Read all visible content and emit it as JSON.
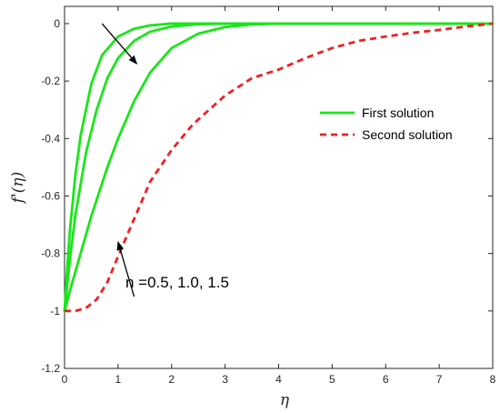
{
  "chart_data": {
    "type": "line",
    "title": "",
    "xlabel": "η",
    "ylabel": "f'(η)",
    "xlim": [
      0,
      8
    ],
    "ylim": [
      -1.2,
      0.05
    ],
    "xticks": [
      "0",
      "1",
      "2",
      "3",
      "4",
      "5",
      "6",
      "7",
      "8"
    ],
    "yticks": [
      "0",
      "-0.2",
      "-0.4",
      "-0.6",
      "-0.8",
      "-1",
      "-1.2"
    ],
    "grid": false,
    "legend_position": "right",
    "colors": {
      "first": "#19e619",
      "second": "#f02020",
      "axis": "#262626"
    },
    "series": [
      {
        "name": "First solution",
        "group": "first",
        "style": "solid",
        "points": [
          [
            0,
            -1
          ],
          [
            0.05,
            -0.85
          ],
          [
            0.1,
            -0.72
          ],
          [
            0.2,
            -0.53
          ],
          [
            0.3,
            -0.39
          ],
          [
            0.5,
            -0.21
          ],
          [
            0.7,
            -0.11
          ],
          [
            1.0,
            -0.045
          ],
          [
            1.3,
            -0.018
          ],
          [
            1.6,
            -0.006
          ],
          [
            2.0,
            0
          ],
          [
            8,
            0
          ]
        ]
      },
      {
        "name": "",
        "group": "first",
        "style": "solid",
        "points": [
          [
            0,
            -1
          ],
          [
            0.1,
            -0.82
          ],
          [
            0.2,
            -0.67
          ],
          [
            0.4,
            -0.45
          ],
          [
            0.6,
            -0.3
          ],
          [
            0.8,
            -0.19
          ],
          [
            1.0,
            -0.12
          ],
          [
            1.3,
            -0.06
          ],
          [
            1.6,
            -0.028
          ],
          [
            2.0,
            -0.01
          ],
          [
            2.5,
            -0.002
          ],
          [
            3.0,
            0
          ],
          [
            8,
            0
          ]
        ]
      },
      {
        "name": "",
        "group": "first",
        "style": "solid",
        "points": [
          [
            0,
            -1
          ],
          [
            0.1,
            -0.93
          ],
          [
            0.3,
            -0.8
          ],
          [
            0.5,
            -0.67
          ],
          [
            0.8,
            -0.5
          ],
          [
            1.0,
            -0.4
          ],
          [
            1.3,
            -0.27
          ],
          [
            1.6,
            -0.17
          ],
          [
            2.0,
            -0.085
          ],
          [
            2.5,
            -0.035
          ],
          [
            3.0,
            -0.012
          ],
          [
            3.5,
            -0.003
          ],
          [
            4.0,
            0
          ],
          [
            8,
            0
          ]
        ]
      },
      {
        "name": "Second solution",
        "group": "second",
        "style": "dashed",
        "points": [
          [
            0,
            -1
          ],
          [
            0.2,
            -1.0
          ],
          [
            0.4,
            -0.99
          ],
          [
            0.6,
            -0.96
          ],
          [
            0.8,
            -0.9
          ],
          [
            1.0,
            -0.81
          ],
          [
            1.3,
            -0.68
          ],
          [
            1.6,
            -0.55
          ],
          [
            2.0,
            -0.44
          ],
          [
            2.4,
            -0.35
          ],
          [
            3.0,
            -0.25
          ],
          [
            3.5,
            -0.19
          ],
          [
            4.0,
            -0.16
          ],
          [
            4.5,
            -0.12
          ],
          [
            5.0,
            -0.085
          ],
          [
            5.5,
            -0.06
          ],
          [
            6.0,
            -0.045
          ],
          [
            6.5,
            -0.032
          ],
          [
            7.0,
            -0.022
          ],
          [
            7.5,
            -0.01
          ],
          [
            8.0,
            0
          ]
        ]
      }
    ],
    "annotations": {
      "n_label": "n =0.5, 1.0, 1.5",
      "arrow_first": {
        "from": [
          0.7,
          0.0
        ],
        "to": [
          1.35,
          -0.14
        ]
      },
      "arrow_second": {
        "from": [
          1.3,
          -0.95
        ],
        "to": [
          1.0,
          -0.76
        ]
      }
    }
  }
}
